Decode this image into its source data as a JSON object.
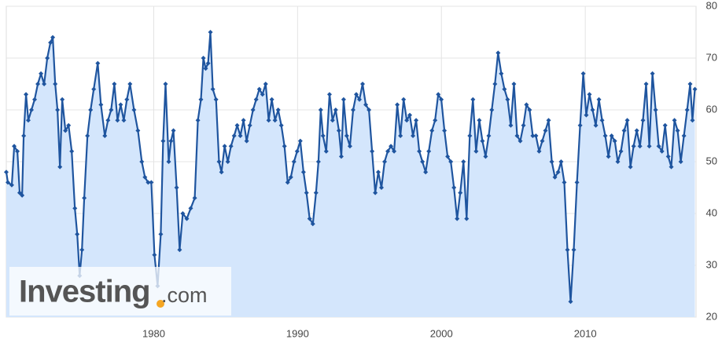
{
  "chart_data": {
    "type": "line",
    "watermark": {
      "brand": "Investing",
      "suffix": ".com"
    },
    "x": [
      1969.75,
      1969.86,
      1970.13,
      1970.3,
      1970.52,
      1970.68,
      1970.85,
      1970.96,
      1971.12,
      1971.28,
      1971.5,
      1971.72,
      1971.94,
      1972.16,
      1972.38,
      1972.6,
      1972.82,
      1972.98,
      1973.15,
      1973.31,
      1973.48,
      1973.64,
      1973.86,
      1974.08,
      1974.3,
      1974.52,
      1974.68,
      1974.85,
      1975.01,
      1975.17,
      1975.39,
      1975.61,
      1975.83,
      1976.11,
      1976.33,
      1976.6,
      1976.82,
      1977.04,
      1977.26,
      1977.48,
      1977.7,
      1977.92,
      1978.13,
      1978.35,
      1978.63,
      1978.9,
      1979.17,
      1979.39,
      1979.61,
      1979.83,
      1980.05,
      1980.27,
      1980.49,
      1980.65,
      1980.82,
      1981.04,
      1981.2,
      1981.37,
      1981.59,
      1981.8,
      1982.02,
      1982.3,
      1982.57,
      1982.85,
      1983.07,
      1983.28,
      1983.45,
      1983.61,
      1983.78,
      1983.94,
      1984.11,
      1984.33,
      1984.54,
      1984.71,
      1984.93,
      1985.15,
      1985.37,
      1985.59,
      1985.8,
      1986.02,
      1986.24,
      1986.46,
      1986.68,
      1986.9,
      1987.12,
      1987.34,
      1987.56,
      1987.78,
      1987.99,
      1988.21,
      1988.43,
      1988.65,
      1988.87,
      1989.09,
      1989.31,
      1989.53,
      1989.75,
      1989.97,
      1990.19,
      1990.41,
      1990.62,
      1990.84,
      1991.06,
      1991.28,
      1991.45,
      1991.61,
      1991.77,
      1991.99,
      1992.22,
      1992.43,
      1992.65,
      1992.87,
      1993.04,
      1993.2,
      1993.42,
      1993.64,
      1993.86,
      1994.08,
      1994.3,
      1994.52,
      1994.74,
      1994.96,
      1995.18,
      1995.4,
      1995.61,
      1995.83,
      1996.05,
      1996.27,
      1996.49,
      1996.71,
      1996.93,
      1997.15,
      1997.37,
      1997.59,
      1997.8,
      1998.02,
      1998.24,
      1998.46,
      1998.68,
      1998.9,
      1999.12,
      1999.34,
      1999.56,
      1999.78,
      1999.99,
      2000.21,
      2000.43,
      2000.65,
      2000.87,
      2001.09,
      2001.31,
      2001.53,
      2001.75,
      2001.97,
      2002.19,
      2002.41,
      2002.63,
      2002.85,
      2003.07,
      2003.29,
      2003.5,
      2003.72,
      2003.94,
      2004.16,
      2004.38,
      2004.6,
      2004.82,
      2005.04,
      2005.26,
      2005.48,
      2005.7,
      2005.91,
      2006.13,
      2006.35,
      2006.57,
      2006.79,
      2007.01,
      2007.23,
      2007.45,
      2007.67,
      2007.89,
      2008.11,
      2008.32,
      2008.54,
      2008.76,
      2008.98,
      2009.2,
      2009.42,
      2009.64,
      2009.86,
      2010.07,
      2010.29,
      2010.51,
      2010.73,
      2010.95,
      2011.17,
      2011.39,
      2011.61,
      2011.83,
      2012.05,
      2012.26,
      2012.48,
      2012.7,
      2012.92,
      2013.14,
      2013.36,
      2013.58,
      2013.8,
      2014.01,
      2014.23,
      2014.45,
      2014.67,
      2014.89,
      2015.11,
      2015.33,
      2015.55,
      2015.77,
      2015.98,
      2016.2,
      2016.42,
      2016.64,
      2016.86,
      2017.08,
      2017.29,
      2017.45,
      2017.62
    ],
    "series": [
      {
        "color": "#1f559f",
        "fill": "#d4e6fc",
        "values": [
          48,
          46,
          45.5,
          53,
          52,
          44,
          43.5,
          55,
          63,
          58,
          60,
          62,
          65,
          67,
          65,
          70,
          73,
          74,
          65,
          60,
          49,
          62,
          56,
          57,
          52,
          41,
          36,
          28,
          33,
          43,
          55,
          60,
          64,
          69,
          61,
          55,
          58,
          60,
          65,
          58,
          61,
          58,
          62,
          65,
          60,
          56,
          50,
          47,
          46,
          46,
          32,
          26,
          36,
          54,
          65,
          50,
          54,
          56,
          45,
          33,
          40,
          39,
          41,
          43,
          58,
          62,
          70,
          68,
          69,
          75,
          64,
          62,
          50,
          48,
          53,
          50,
          53,
          55,
          57,
          55,
          58,
          54,
          57,
          60,
          62,
          64,
          63,
          65,
          58,
          62,
          58,
          60,
          57,
          53,
          46,
          47,
          50,
          52,
          54,
          48,
          44,
          39,
          38,
          44,
          50,
          60,
          55,
          52,
          63,
          58,
          60,
          56,
          51,
          62,
          55,
          53,
          60,
          63,
          62,
          65,
          61,
          60,
          52,
          44,
          48,
          45,
          50,
          52,
          53,
          52,
          61,
          55,
          62,
          58,
          59,
          55,
          58,
          52,
          50,
          48,
          52,
          56,
          58,
          63,
          62,
          56,
          51,
          50,
          45,
          39,
          44,
          50,
          39,
          55,
          62,
          52,
          58,
          54,
          51,
          55,
          60,
          65,
          71,
          67,
          64,
          62,
          57,
          65,
          55,
          54,
          57,
          61,
          60,
          55,
          55,
          52,
          54,
          56,
          58,
          50,
          47,
          48,
          50,
          46,
          33,
          23,
          33,
          46,
          57,
          67,
          59,
          63,
          60,
          57,
          62,
          58,
          55,
          51,
          55,
          54,
          50,
          52,
          56,
          58,
          49,
          53,
          56,
          53,
          58,
          65,
          53,
          67,
          60,
          53,
          52,
          57,
          51,
          49,
          58,
          56,
          50,
          55,
          60,
          65,
          58,
          64
        ]
      }
    ],
    "xlim": [
      1969.75,
      2017.7
    ],
    "xticks": [
      1980,
      1990,
      2000,
      2010
    ],
    "ylim": [
      20,
      80
    ],
    "yticks": [
      20,
      30,
      40,
      50,
      60,
      70,
      80
    ],
    "grid": true
  }
}
